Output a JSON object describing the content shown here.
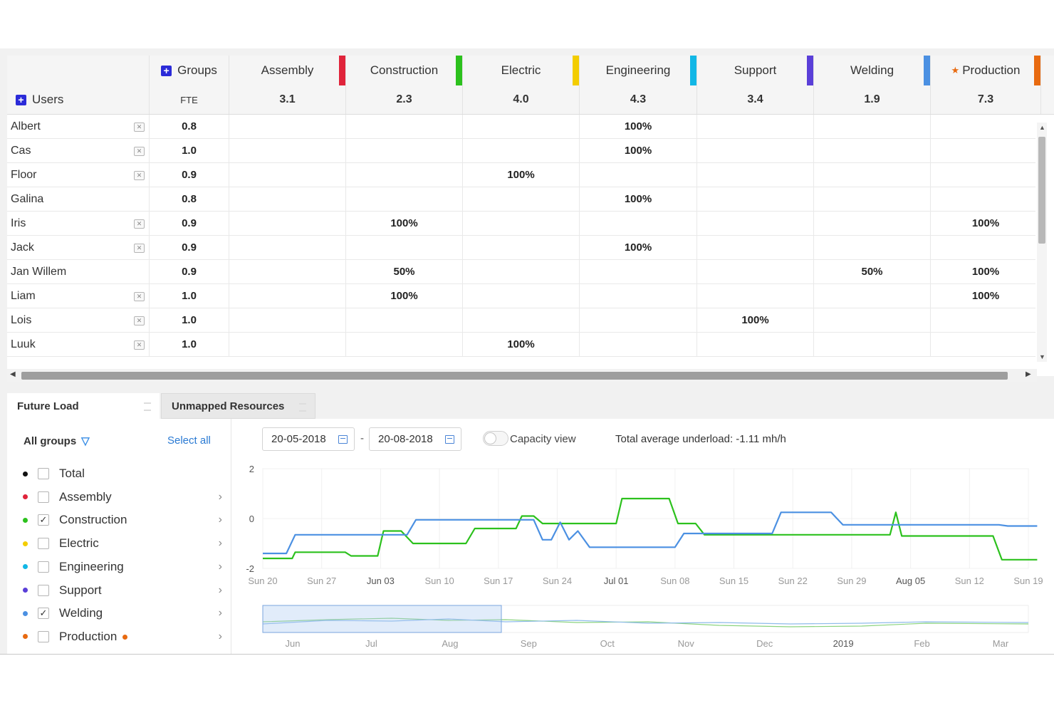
{
  "grid": {
    "groups_label": "Groups",
    "users_label": "Users",
    "fte_label": "FTE",
    "groups": [
      {
        "name": "Assembly",
        "fte": "3.1",
        "color": "#e0243b"
      },
      {
        "name": "Construction",
        "fte": "2.3",
        "color": "#2cc11d"
      },
      {
        "name": "Electric",
        "fte": "4.0",
        "color": "#f3cd00"
      },
      {
        "name": "Engineering",
        "fte": "4.3",
        "color": "#12b7e6"
      },
      {
        "name": "Support",
        "fte": "3.4",
        "color": "#5a3fd8"
      },
      {
        "name": "Welding",
        "fte": "1.9",
        "color": "#4b90e2"
      },
      {
        "name": "Production",
        "fte": "7.3",
        "color": "#e86a10"
      }
    ],
    "rows": [
      {
        "name": "Albert",
        "fte": "0.8",
        "remove": true,
        "cells": [
          "",
          "",
          "",
          "100%",
          "",
          "",
          ""
        ]
      },
      {
        "name": "Cas",
        "fte": "1.0",
        "remove": true,
        "cells": [
          "",
          "",
          "",
          "100%",
          "",
          "",
          ""
        ]
      },
      {
        "name": "Floor",
        "fte": "0.9",
        "remove": true,
        "cells": [
          "",
          "",
          "100%",
          "",
          "",
          "",
          ""
        ]
      },
      {
        "name": "Galina",
        "fte": "0.8",
        "remove": false,
        "cells": [
          "",
          "",
          "",
          "100%",
          "",
          "",
          ""
        ]
      },
      {
        "name": "Iris",
        "fte": "0.9",
        "remove": true,
        "cells": [
          "",
          "100%",
          "",
          "",
          "",
          "",
          "100%"
        ]
      },
      {
        "name": "Jack",
        "fte": "0.9",
        "remove": true,
        "cells": [
          "",
          "",
          "",
          "100%",
          "",
          "",
          ""
        ]
      },
      {
        "name": "Jan Willem",
        "fte": "0.9",
        "remove": false,
        "cells": [
          "",
          "50%",
          "",
          "",
          "",
          "50%",
          "100%"
        ]
      },
      {
        "name": "Liam",
        "fte": "1.0",
        "remove": true,
        "cells": [
          "",
          "100%",
          "",
          "",
          "",
          "",
          "100%"
        ]
      },
      {
        "name": "Lois",
        "fte": "1.0",
        "remove": true,
        "cells": [
          "",
          "",
          "",
          "",
          "100%",
          "",
          ""
        ]
      },
      {
        "name": "Luuk",
        "fte": "1.0",
        "remove": true,
        "cells": [
          "",
          "",
          "100%",
          "",
          "",
          "",
          ""
        ]
      }
    ]
  },
  "tabs": {
    "future_load": "Future Load",
    "unmapped_resources": "Unmapped Resources"
  },
  "legend": {
    "header": "All groups",
    "select_all": "Select all",
    "items": [
      {
        "label": "Total",
        "color": "#111111",
        "checked": false,
        "chevron": false,
        "marker": false
      },
      {
        "label": "Assembly",
        "color": "#e0243b",
        "checked": false,
        "chevron": true,
        "marker": false
      },
      {
        "label": "Construction",
        "color": "#2cc11d",
        "checked": true,
        "chevron": true,
        "marker": false
      },
      {
        "label": "Electric",
        "color": "#f3cd00",
        "checked": false,
        "chevron": true,
        "marker": false
      },
      {
        "label": "Engineering",
        "color": "#12b7e6",
        "checked": false,
        "chevron": true,
        "marker": false
      },
      {
        "label": "Support",
        "color": "#5a3fd8",
        "checked": false,
        "chevron": true,
        "marker": false
      },
      {
        "label": "Welding",
        "color": "#4b90e2",
        "checked": true,
        "chevron": true,
        "marker": false
      },
      {
        "label": "Production",
        "color": "#e86a10",
        "checked": false,
        "chevron": true,
        "marker": true
      }
    ]
  },
  "controls": {
    "date_from": "20-05-2018",
    "date_separator": "-",
    "date_to": "20-08-2018",
    "capacity_view_label": "Capacity view",
    "capacity_view_on": false,
    "underload_text": "Total average underload: -1.11 mh/h"
  },
  "chart_data": {
    "type": "line",
    "ylim": [
      -2,
      2
    ],
    "y_ticks": [
      "2",
      "0",
      "-2"
    ],
    "x_ticks": [
      "Sun 20",
      "Sun 27",
      "Jun 03",
      "Sun 10",
      "Sun 17",
      "Sun 24",
      "Jul 01",
      "Sun 08",
      "Sun 15",
      "Sun 22",
      "Sun 29",
      "Aug 05",
      "Sun 12",
      "Sun 19"
    ],
    "x_ticks_emphasized": [
      "Jun 03",
      "Jul 01",
      "Aug 05"
    ],
    "grid": true,
    "series": [
      {
        "color": "#2cc11d",
        "x": [
          0,
          0.5,
          0.55,
          1.4,
          1.5,
          1.95,
          2.05,
          2.2,
          2.35,
          2.55,
          3.45,
          3.6,
          4.3,
          4.4,
          4.6,
          4.75,
          6.0,
          6.1,
          6.9,
          7.05,
          7.35,
          7.5,
          10.65,
          10.75,
          10.85,
          12.4,
          12.55,
          13.15
        ],
        "y": [
          -1.6,
          -1.6,
          -1.35,
          -1.35,
          -1.5,
          -1.5,
          -0.5,
          -0.5,
          -0.5,
          -1.0,
          -1.0,
          -0.4,
          -0.4,
          0.1,
          0.1,
          -0.2,
          -0.2,
          0.8,
          0.8,
          -0.2,
          -0.2,
          -0.65,
          -0.65,
          0.25,
          -0.7,
          -0.7,
          -1.65,
          -1.65
        ]
      },
      {
        "color": "#4b90e2",
        "x": [
          0,
          0.4,
          0.55,
          2.45,
          2.6,
          4.6,
          4.75,
          4.9,
          5.05,
          5.2,
          5.35,
          5.55,
          7.0,
          7.15,
          7.45,
          8.65,
          8.8,
          9.65,
          9.85,
          12.5,
          12.65,
          13.15
        ],
        "y": [
          -1.4,
          -1.4,
          -0.65,
          -0.65,
          -0.05,
          -0.05,
          -0.85,
          -0.85,
          -0.15,
          -0.85,
          -0.5,
          -1.15,
          -1.15,
          -0.6,
          -0.6,
          -0.6,
          0.25,
          0.25,
          -0.25,
          -0.25,
          -0.3,
          -0.3
        ]
      }
    ],
    "navigator": {
      "ticks": [
        "Jun",
        "Jul",
        "Aug",
        "Sep",
        "Oct",
        "Nov",
        "Dec",
        "2019",
        "Feb",
        "Mar"
      ],
      "emphasized": [
        "2019"
      ]
    }
  }
}
